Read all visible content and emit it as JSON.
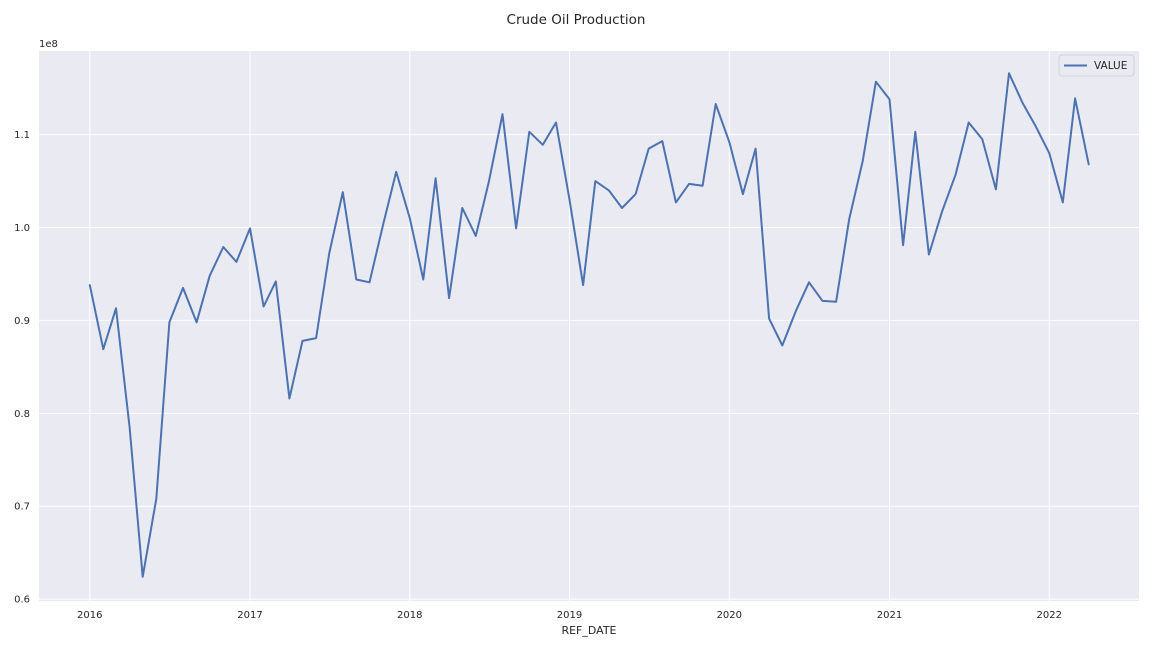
{
  "chart_data": {
    "type": "line",
    "title": "Crude Oil Production",
    "xlabel": "REF_DATE",
    "ylabel": "",
    "y_offset_label": "1e8",
    "y_scale_factor": 100000000,
    "ylim": [
      0.598,
      1.19
    ],
    "xlim": [
      "2015-09-07",
      "2022-07-25"
    ],
    "x_ticks": [
      "2016",
      "2017",
      "2018",
      "2019",
      "2020",
      "2021",
      "2022"
    ],
    "y_ticks": [
      "0.6",
      "0.7",
      "0.8",
      "0.9",
      "1.0",
      "1.1"
    ],
    "grid": true,
    "legend_position": "top-right",
    "series": [
      {
        "name": "VALUE",
        "color": "#4c72b0",
        "x": [
          "2016-01",
          "2016-02",
          "2016-03",
          "2016-04",
          "2016-05",
          "2016-06",
          "2016-07",
          "2016-08",
          "2016-09",
          "2016-10",
          "2016-11",
          "2016-12",
          "2017-01",
          "2017-02",
          "2017-03",
          "2017-04",
          "2017-05",
          "2017-06",
          "2017-07",
          "2017-08",
          "2017-09",
          "2017-10",
          "2017-11",
          "2017-12",
          "2018-01",
          "2018-02",
          "2018-03",
          "2018-04",
          "2018-05",
          "2018-06",
          "2018-07",
          "2018-08",
          "2018-09",
          "2018-10",
          "2018-11",
          "2018-12",
          "2019-01",
          "2019-02",
          "2019-03",
          "2019-04",
          "2019-05",
          "2019-06",
          "2019-07",
          "2019-08",
          "2019-09",
          "2019-10",
          "2019-11",
          "2019-12",
          "2020-01",
          "2020-02",
          "2020-03",
          "2020-04",
          "2020-05",
          "2020-06",
          "2020-07",
          "2020-08",
          "2020-09",
          "2020-10",
          "2020-11",
          "2020-12",
          "2021-01",
          "2021-02",
          "2021-03",
          "2021-04",
          "2021-05",
          "2021-06",
          "2021-07",
          "2021-08",
          "2021-09",
          "2021-10",
          "2021-11",
          "2021-12",
          "2022-01",
          "2022-02",
          "2022-03",
          "2022-04"
        ],
        "values": [
          0.938,
          0.869,
          0.913,
          0.785,
          0.624,
          0.708,
          0.898,
          0.935,
          0.898,
          0.948,
          0.979,
          0.963,
          0.999,
          0.915,
          0.942,
          0.816,
          0.878,
          0.881,
          0.972,
          1.038,
          0.944,
          0.941,
          1.003,
          1.06,
          1.01,
          0.944,
          1.053,
          0.924,
          1.021,
          0.991,
          1.05,
          1.122,
          0.999,
          1.103,
          1.089,
          1.113,
          1.03,
          0.938,
          1.05,
          1.04,
          1.021,
          1.036,
          1.085,
          1.093,
          1.027,
          1.047,
          1.045,
          1.133,
          1.092,
          1.036,
          1.085,
          0.902,
          0.873,
          0.91,
          0.941,
          0.921,
          0.92,
          1.009,
          1.072,
          1.157,
          1.138,
          0.981,
          1.103,
          0.971,
          1.017,
          1.057,
          1.113,
          1.095,
          1.041,
          1.166,
          1.134,
          1.109,
          1.08,
          1.027,
          1.139,
          1.068
        ]
      }
    ]
  }
}
